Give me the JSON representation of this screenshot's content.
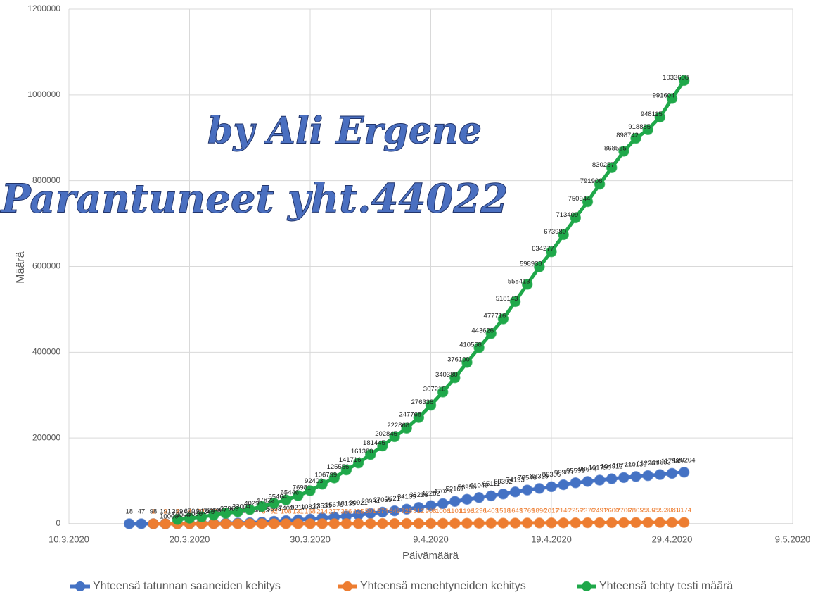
{
  "chart_data": {
    "type": "line",
    "annotations": [
      "by Ali Ergene",
      "Parantuneet yht.44022"
    ],
    "x_label": "Päivämäärä",
    "y_label": "Määrä",
    "x": [
      "15.3.2020",
      "16.3.2020",
      "17.3.2020",
      "18.3.2020",
      "19.3.2020",
      "20.3.2020",
      "21.3.2020",
      "22.3.2020",
      "23.3.2020",
      "24.3.2020",
      "25.3.2020",
      "26.3.2020",
      "27.3.2020",
      "28.3.2020",
      "29.3.2020",
      "30.3.2020",
      "31.3.2020",
      "1.4.2020",
      "2.4.2020",
      "3.4.2020",
      "4.4.2020",
      "5.4.2020",
      "6.4.2020",
      "7.4.2020",
      "8.4.2020",
      "9.4.2020",
      "10.4.2020",
      "11.4.2020",
      "12.4.2020",
      "13.4.2020",
      "14.4.2020",
      "15.4.2020",
      "16.4.2020",
      "17.4.2020",
      "18.4.2020",
      "19.4.2020",
      "20.4.2020",
      "21.4.2020",
      "22.4.2020",
      "23.4.2020",
      "24.4.2020",
      "25.4.2020",
      "26.4.2020",
      "27.4.2020",
      "28.4.2020",
      "29.4.2020",
      "30.4.2020"
    ],
    "series": [
      {
        "name": "Yhteensä tatunnan saaneiden kehitys",
        "color": "#4472c4",
        "label_color": "#222222",
        "values": [
          18,
          47,
          98,
          191,
          359,
          670,
          947,
          1236,
          1529,
          1872,
          2433,
          3629,
          5698,
          7402,
          9217,
          10827,
          13531,
          15679,
          18135,
          20921,
          23934,
          27069,
          30217,
          34109,
          38226,
          42282,
          47029,
          52167,
          56956,
          61049,
          65111,
          69392,
          74193,
          78546,
          82329,
          86306,
          90980,
          95591,
          98674,
          101790,
          104912,
          107773,
          110130,
          112261,
          114653,
          117589,
          120204
        ]
      },
      {
        "name": "Yhteensä menehtyneiden kehitys",
        "color": "#ed7d31",
        "label_color": "#ed7d31",
        "values": [
          null,
          null,
          1,
          2,
          3,
          4,
          21,
          30,
          37,
          44,
          59,
          75,
          92,
          108,
          131,
          168,
          214,
          277,
          356,
          425,
          501,
          574,
          649,
          725,
          812,
          908,
          1006,
          1101,
          1198,
          1296,
          1403,
          1518,
          1643,
          1769,
          1890,
          2017,
          2140,
          2259,
          2376,
          2491,
          2600,
          2706,
          2805,
          2900,
          2992,
          3081,
          3174
        ]
      },
      {
        "name": "Yhteensä tehty testi määrä",
        "color": "#1fa84a",
        "label_color": "#222222",
        "values": [
          null,
          null,
          null,
          null,
          10000,
          13000,
          16000,
          20345,
          24407,
          27969,
          33004,
          40290,
          47823,
          55464,
          65446,
          76981,
          92403,
          106799,
          125556,
          141716,
          161380,
          181445,
          202845,
          222868,
          247768,
          276338,
          307210,
          340380,
          376100,
          410558,
          443626,
          477716,
          518143,
          558413,
          598938,
          634277,
          673980,
          713409,
          750944,
          791906,
          830257,
          868565,
          898742,
          918885,
          948115,
          991604,
          1033608
        ]
      }
    ],
    "xlim": [
      "10.3.2020",
      "9.5.2020"
    ],
    "xticks": [
      "10.3.2020",
      "20.3.2020",
      "30.3.2020",
      "9.4.2020",
      "19.4.2020",
      "29.4.2020",
      "9.5.2020"
    ],
    "ylim": [
      0,
      1200000
    ],
    "yticks": [
      0,
      200000,
      400000,
      600000,
      800000,
      1000000,
      1200000
    ],
    "grid": true,
    "legend": "bottom"
  }
}
